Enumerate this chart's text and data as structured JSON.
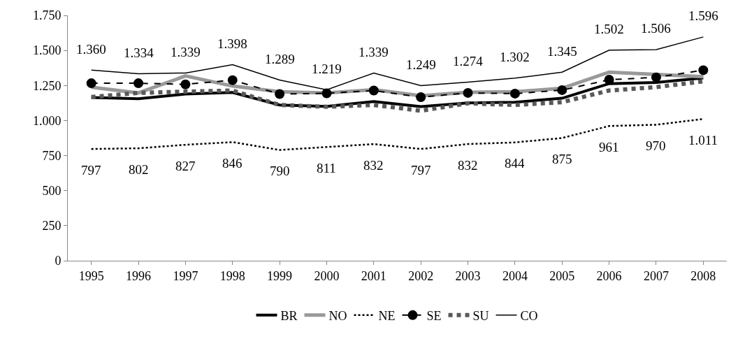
{
  "chart_data": {
    "type": "line",
    "categories": [
      "1995",
      "1996",
      "1997",
      "1998",
      "1999",
      "2000",
      "2001",
      "2002",
      "2003",
      "2004",
      "2005",
      "2006",
      "2007",
      "2008"
    ],
    "ylim": [
      0,
      1750
    ],
    "yticks": [
      {
        "value": 0,
        "label": "0"
      },
      {
        "value": 250,
        "label": "250"
      },
      {
        "value": 500,
        "label": "500"
      },
      {
        "value": 750,
        "label": "750"
      },
      {
        "value": 1000,
        "label": "1.000"
      },
      {
        "value": 1250,
        "label": "1.250"
      },
      {
        "value": 1500,
        "label": "1.500"
      },
      {
        "value": 1750,
        "label": "1.750"
      }
    ],
    "legend": "bottom",
    "series": [
      {
        "name": "BR",
        "color": "#000000",
        "line_style": "solid",
        "marker": "none",
        "values": [
          1164,
          1156,
          1189,
          1200,
          1111,
          1101,
          1135,
          1100,
          1126,
          1131,
          1159,
          1263,
          1271,
          1304
        ]
      },
      {
        "name": "NO",
        "color": "#999999",
        "line_style": "solid",
        "marker": "none",
        "values": [
          1238,
          1197,
          1318,
          1246,
          1205,
          1197,
          1220,
          1177,
          1202,
          1205,
          1230,
          1345,
          1329,
          1313
        ]
      },
      {
        "name": "NE",
        "color": "#000000",
        "line_style": "dotted",
        "marker": "none",
        "values": [
          797,
          802,
          827,
          846,
          790,
          811,
          832,
          797,
          832,
          844,
          875,
          961,
          970,
          1011
        ],
        "value_labels": [
          "797",
          "802",
          "827",
          "846",
          "790",
          "811",
          "832",
          "797",
          "832",
          "844",
          "875",
          "961",
          "970",
          "1.011"
        ]
      },
      {
        "name": "SE",
        "color": "#000000",
        "line_style": "dashed",
        "marker": "circle",
        "values": [
          1266,
          1266,
          1258,
          1288,
          1189,
          1194,
          1214,
          1167,
          1197,
          1192,
          1217,
          1291,
          1308,
          1359
        ]
      },
      {
        "name": "SU",
        "color": "#595959",
        "line_style": "dotted",
        "marker": "none",
        "values": [
          1168,
          1197,
          1206,
          1214,
          1111,
          1098,
          1111,
          1070,
          1123,
          1111,
          1131,
          1214,
          1238,
          1280
        ]
      },
      {
        "name": "CO",
        "color": "#000000",
        "line_style": "solid",
        "marker": "none",
        "values": [
          1360,
          1334,
          1339,
          1398,
          1289,
          1219,
          1339,
          1249,
          1274,
          1302,
          1345,
          1502,
          1506,
          1596
        ],
        "value_labels": [
          "1.360",
          "1.334",
          "1.339",
          "1.398",
          "1.289",
          "1.219",
          "1.339",
          "1.249",
          "1.274",
          "1.302",
          "1.345",
          "1.502",
          "1.506",
          "1.596"
        ]
      }
    ]
  }
}
